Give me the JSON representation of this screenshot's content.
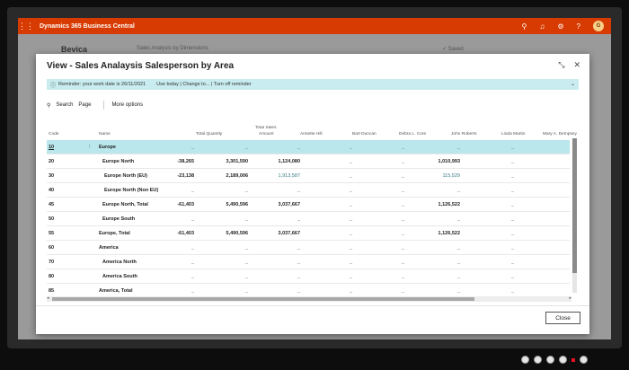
{
  "app": {
    "title": "Dynamics 365 Business Central",
    "avatar_initials": "G"
  },
  "background": {
    "company": "Bevica",
    "breadcrumb": "Sales Analysis by Dimensions",
    "saved": "✓ Saved"
  },
  "dialog": {
    "title": "View - Sales Analaysis Salesperson by Area",
    "reminder": {
      "text": "Reminder: your work date is 26/11/2021",
      "actions": "Use today | Change to... | Turn off reminder"
    },
    "actions": {
      "search": "Search",
      "page": "Page",
      "more": "More options"
    },
    "close_label": "Close"
  },
  "grid": {
    "headers": {
      "code": "Code",
      "name": "Name",
      "total_quantity": "Total Quantity",
      "total_sales_amount_1": "Total Sales",
      "total_sales_amount_2": "Amount",
      "annette": "Annette Hill",
      "bart": "Bart Duncan",
      "debra": "Debra L. Core",
      "john": "John Roberts",
      "linda": "Linda Martin",
      "mary": "Mary A. Dempsey"
    },
    "rows": [
      {
        "code": "10",
        "name": "Europe",
        "qty": "_",
        "amt": "_",
        "annette": "_",
        "bart": "_",
        "debra": "_",
        "john": "_",
        "linda": "_"
      },
      {
        "code": "20",
        "name": "Europe North",
        "qty": "-38,265",
        "amt": "3,301,590",
        "annette": "1,124,080",
        "bart": "_",
        "debra": "_",
        "john": "1,010,993",
        "linda": "_"
      },
      {
        "code": "30",
        "name": "Europe North (EU)",
        "qty": "-23,138",
        "amt": "2,189,006",
        "annette": "1,913,587",
        "bart": "_",
        "debra": "_",
        "john": "115,529",
        "linda": "_"
      },
      {
        "code": "40",
        "name": "Europe North (Non EU)",
        "qty": "_",
        "amt": "_",
        "annette": "_",
        "bart": "_",
        "debra": "_",
        "john": "_",
        "linda": "_"
      },
      {
        "code": "45",
        "name": "Europe North, Total",
        "qty": "-61,403",
        "amt": "5,490,596",
        "annette": "3,037,667",
        "bart": "_",
        "debra": "_",
        "john": "1,126,522",
        "linda": "_"
      },
      {
        "code": "50",
        "name": "Europe South",
        "qty": "_",
        "amt": "_",
        "annette": "_",
        "bart": "_",
        "debra": "_",
        "john": "_",
        "linda": "_"
      },
      {
        "code": "55",
        "name": "Europe, Total",
        "qty": "-61,403",
        "amt": "5,490,596",
        "annette": "3,037,667",
        "bart": "_",
        "debra": "_",
        "john": "1,126,522",
        "linda": "_"
      },
      {
        "code": "60",
        "name": "America",
        "qty": "_",
        "amt": "_",
        "annette": "_",
        "bart": "_",
        "debra": "_",
        "john": "_",
        "linda": "_"
      },
      {
        "code": "70",
        "name": "America North",
        "qty": "_",
        "amt": "_",
        "annette": "_",
        "bart": "_",
        "debra": "_",
        "john": "_",
        "linda": "_"
      },
      {
        "code": "80",
        "name": "America South",
        "qty": "_",
        "amt": "_",
        "annette": "_",
        "bart": "_",
        "debra": "_",
        "john": "_",
        "linda": "_"
      },
      {
        "code": "85",
        "name": "America, Total",
        "qty": "_",
        "amt": "_",
        "annette": "_",
        "bart": "_",
        "debra": "_",
        "john": "_",
        "linda": "_"
      }
    ]
  },
  "icons": {
    "waffle": "waffle-icon",
    "search": "search-icon",
    "bell": "bell-icon",
    "gear": "gear-icon",
    "help": "help-icon",
    "collapse": "collapse-icon",
    "close": "close-icon"
  },
  "colors": {
    "accent": "#d83b01",
    "selected_row": "#b9e7ec",
    "reminder_bg": "#c8ecef"
  }
}
